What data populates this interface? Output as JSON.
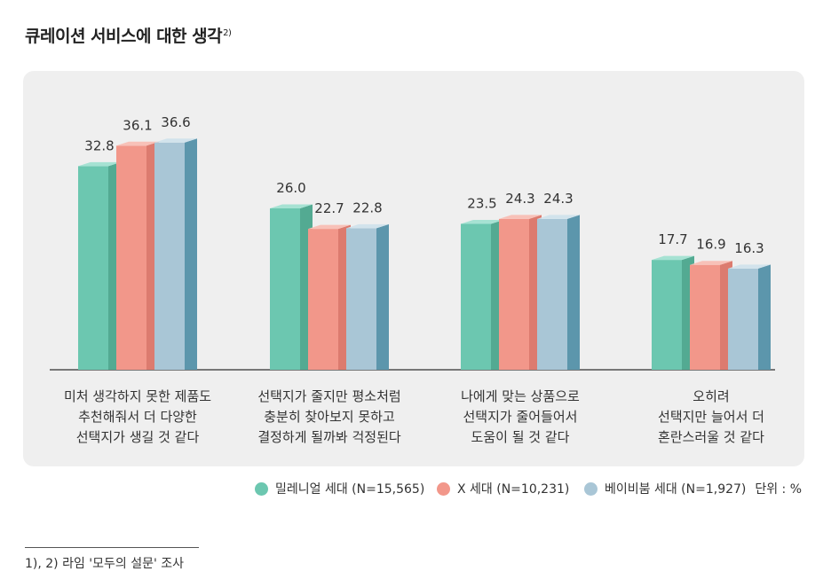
{
  "title": "큐레이션 서비스에 대한 생각",
  "title_note": "2)",
  "colors": {
    "millennial": {
      "front": "#6cc7b0",
      "side": "#53aa92",
      "top": "#a6e2d3"
    },
    "genx": {
      "front": "#f2978a",
      "side": "#dc7b6f",
      "top": "#f8c1b8"
    },
    "boomer": {
      "front": "#a9c6d6",
      "side": "#5c96ac",
      "top": "#d2e3ec"
    }
  },
  "chart_data": {
    "type": "bar",
    "title": "큐레이션 서비스에 대한 생각",
    "categories": [
      [
        "미처 생각하지 못한 제품도",
        "추천해줘서 더 다양한",
        "선택지가 생길 것 같다"
      ],
      [
        "선택지가 줄지만 평소처럼",
        "충분히 찾아보지 못하고",
        "결정하게 될까봐 걱정된다"
      ],
      [
        "나에게 맞는 상품으로",
        "선택지가 줄어들어서",
        "도움이 될 것 같다"
      ],
      [
        "오히려",
        "선택지만 늘어서 더",
        "혼란스러울 것 같다"
      ]
    ],
    "series": [
      {
        "name": "밀레니얼 세대 (N=15,565)",
        "key": "millennial",
        "values": [
          32.8,
          26.0,
          23.5,
          17.7
        ],
        "labels": [
          "32.8",
          "26.0",
          "23.5",
          "17.7"
        ]
      },
      {
        "name": "X 세대 (N=10,231)",
        "key": "genx",
        "values": [
          36.1,
          22.7,
          24.3,
          16.9
        ],
        "labels": [
          "36.1",
          "22.7",
          "24.3",
          "16.9"
        ]
      },
      {
        "name": "베이비붐 세대 (N=1,927)",
        "key": "boomer",
        "values": [
          36.6,
          22.8,
          24.3,
          16.3
        ],
        "labels": [
          "36.6",
          "22.8",
          "24.3",
          "16.3"
        ]
      }
    ],
    "ylim": [
      0,
      40
    ],
    "unit": "단위 : %"
  },
  "footnote": "1), 2) 라임 '모두의 설문' 조사"
}
